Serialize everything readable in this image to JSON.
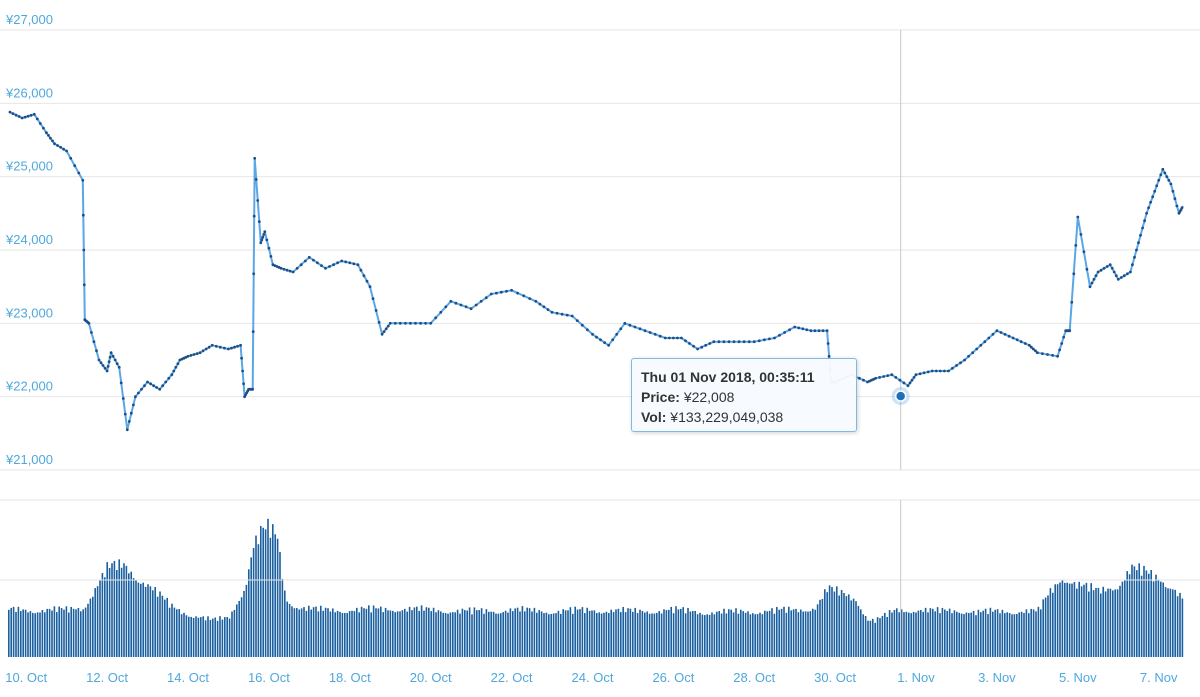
{
  "chart_data": {
    "type": "line",
    "price_axis": {
      "ticks": [
        "¥21,000",
        "¥22,000",
        "¥23,000",
        "¥24,000",
        "¥25,000",
        "¥26,000",
        "¥27,000"
      ],
      "tick_values": [
        21000,
        22000,
        23000,
        24000,
        25000,
        26000,
        27000
      ],
      "ylim": [
        21000,
        27000
      ]
    },
    "x_ticks": [
      "10. Oct",
      "12. Oct",
      "14. Oct",
      "16. Oct",
      "18. Oct",
      "20. Oct",
      "22. Oct",
      "24. Oct",
      "26. Oct",
      "28. Oct",
      "30. Oct",
      "1. Nov",
      "3. Nov",
      "5. Nov",
      "7. Nov"
    ],
    "x_range_days": [
      9.6,
      38.6
    ],
    "price_series": {
      "x": [
        9.6,
        9.9,
        10.2,
        10.5,
        10.7,
        11.0,
        11.4,
        11.45,
        11.55,
        11.8,
        12.0,
        12.1,
        12.3,
        12.5,
        12.7,
        13.0,
        13.3,
        13.6,
        13.8,
        14.0,
        14.3,
        14.6,
        15.0,
        15.3,
        15.4,
        15.5,
        15.6,
        15.65,
        15.8,
        15.9,
        16.1,
        16.3,
        16.6,
        17.0,
        17.4,
        17.8,
        18.2,
        18.5,
        18.8,
        19.0,
        19.5,
        20.0,
        20.5,
        21.0,
        21.5,
        22.0,
        22.6,
        23.0,
        23.5,
        24.0,
        24.4,
        24.8,
        25.3,
        25.8,
        26.2,
        26.6,
        27.0,
        27.5,
        28.0,
        28.5,
        29.0,
        29.4,
        29.8,
        29.9,
        30.0,
        30.4,
        30.8,
        31.0,
        31.4,
        31.8,
        32.0,
        32.4,
        32.8,
        33.2,
        33.6,
        34.0,
        34.4,
        34.8,
        35.0,
        35.5,
        35.7,
        35.8,
        36.0,
        36.3,
        36.5,
        36.8,
        37.0,
        37.3,
        37.5,
        37.7,
        37.9,
        38.1,
        38.3,
        38.5,
        38.6
      ],
      "values": [
        25880,
        25800,
        25850,
        25600,
        25450,
        25350,
        24950,
        23050,
        23000,
        22500,
        22350,
        22600,
        22400,
        21550,
        22000,
        22200,
        22100,
        22300,
        22500,
        22550,
        22600,
        22700,
        22650,
        22700,
        22000,
        22100,
        22100,
        25250,
        24100,
        24250,
        23800,
        23750,
        23700,
        23900,
        23750,
        23850,
        23800,
        23500,
        22850,
        23000,
        23000,
        23000,
        23300,
        23200,
        23400,
        23450,
        23300,
        23150,
        23100,
        22850,
        22700,
        23000,
        22900,
        22800,
        22800,
        22650,
        22750,
        22750,
        22750,
        22800,
        22950,
        22900,
        22900,
        22200,
        22200,
        22300,
        22200,
        22250,
        22300,
        22150,
        22300,
        22350,
        22350,
        22500,
        22700,
        22900,
        22800,
        22700,
        22600,
        22550,
        22900,
        22900,
        24450,
        23500,
        23700,
        23800,
        23600,
        23700,
        24100,
        24500,
        24800,
        25100,
        24900,
        24500,
        24600
      ]
    },
    "volume_series": {
      "x": [
        9.6,
        11.0,
        11.4,
        12.0,
        12.4,
        13.0,
        13.6,
        14.0,
        14.6,
        15.0,
        15.4,
        15.6,
        15.8,
        16.0,
        16.2,
        16.4,
        16.7,
        17.2,
        18.0,
        19.0,
        20.0,
        21.0,
        22.0,
        23.0,
        24.0,
        25.0,
        26.0,
        27.0,
        28.0,
        29.0,
        29.5,
        29.8,
        30.0,
        30.5,
        30.8,
        31.0,
        31.5,
        32.0,
        32.5,
        33.0,
        33.5,
        34.0,
        34.6,
        35.0,
        35.3,
        35.6,
        36.0,
        36.5,
        37.0,
        37.3,
        37.6,
        38.0,
        38.3,
        38.6
      ],
      "values": [
        0.36,
        0.36,
        0.38,
        0.68,
        0.7,
        0.55,
        0.38,
        0.33,
        0.28,
        0.3,
        0.55,
        0.85,
        0.95,
        0.98,
        0.9,
        0.45,
        0.38,
        0.36,
        0.36,
        0.37,
        0.36,
        0.35,
        0.36,
        0.35,
        0.36,
        0.35,
        0.36,
        0.34,
        0.35,
        0.36,
        0.38,
        0.52,
        0.5,
        0.45,
        0.28,
        0.28,
        0.36,
        0.36,
        0.35,
        0.36,
        0.34,
        0.35,
        0.35,
        0.35,
        0.5,
        0.62,
        0.55,
        0.5,
        0.56,
        0.68,
        0.65,
        0.6,
        0.55,
        0.44
      ]
    },
    "hover": {
      "x": 31.62,
      "price": 22008,
      "header": "Thu 01 Nov 2018, 00:35:11",
      "price_label": "Price:",
      "price_value": "¥22,008",
      "vol_label": "Vol:",
      "vol_value": "¥133,229,049,038"
    },
    "colors": {
      "line": "#5aa7e6",
      "marker": "#1f4e86",
      "volume": "#1a5fa0",
      "grid": "#e6e6e6",
      "axis_text": "#4fa8dc",
      "crosshair": "#c8c8c8"
    }
  }
}
